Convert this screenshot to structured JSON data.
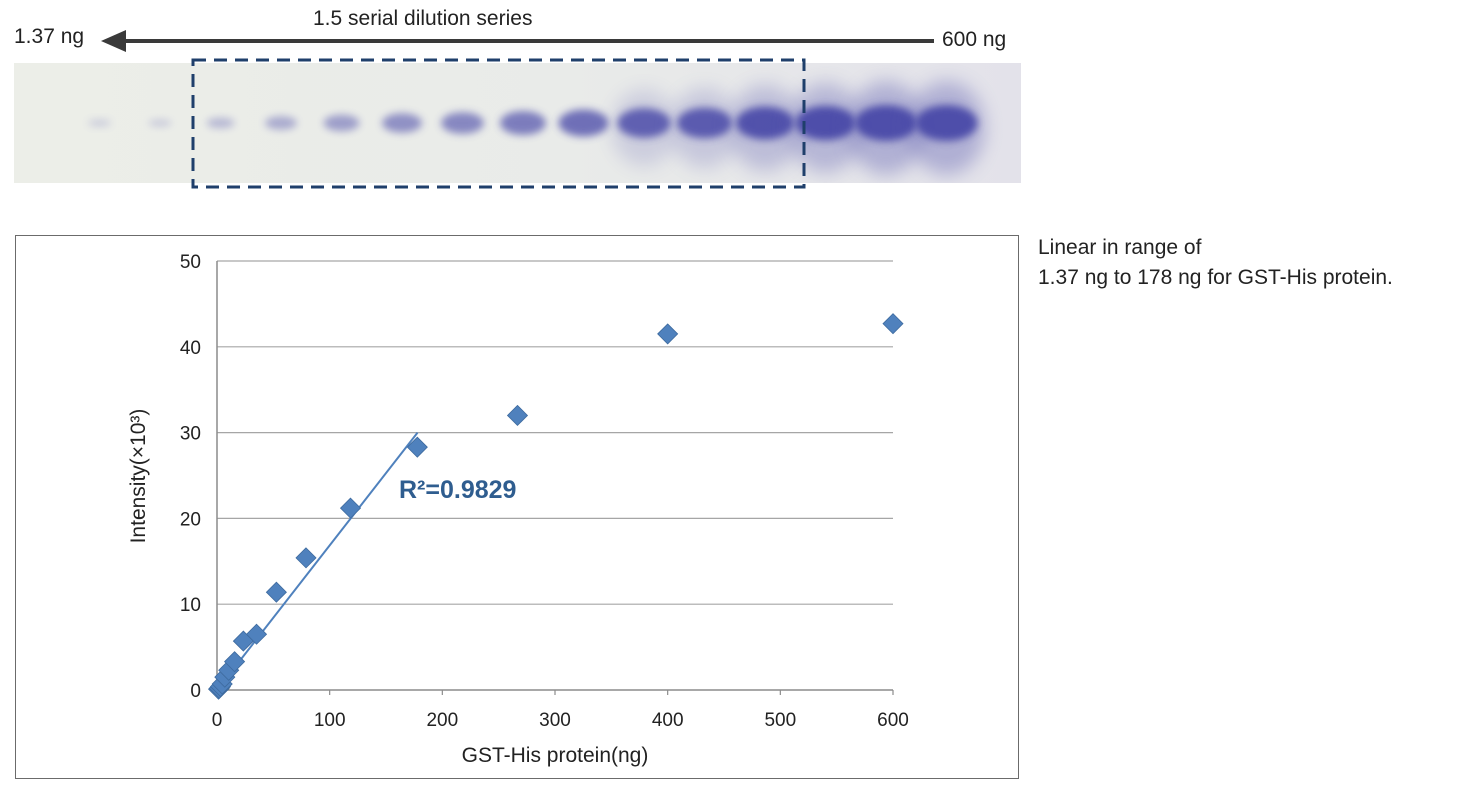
{
  "gel": {
    "left_label": "1.37 ng",
    "right_label": "600 ng",
    "series_label": "1.5 serial dilution series",
    "bands": [
      {
        "lane": 1,
        "intensity": 0.0
      },
      {
        "lane": 2,
        "intensity": 0.02
      },
      {
        "lane": 3,
        "intensity": 0.03
      },
      {
        "lane": 4,
        "intensity": 0.15
      },
      {
        "lane": 5,
        "intensity": 0.25
      },
      {
        "lane": 6,
        "intensity": 0.35
      },
      {
        "lane": 7,
        "intensity": 0.45
      },
      {
        "lane": 8,
        "intensity": 0.52
      },
      {
        "lane": 9,
        "intensity": 0.6
      },
      {
        "lane": 10,
        "intensity": 0.7
      },
      {
        "lane": 11,
        "intensity": 0.78
      },
      {
        "lane": 12,
        "intensity": 0.82
      },
      {
        "lane": 13,
        "intensity": 0.9
      },
      {
        "lane": 14,
        "intensity": 0.95
      },
      {
        "lane": 15,
        "intensity": 1.0
      },
      {
        "lane": 16,
        "intensity": 1.0
      }
    ],
    "band_color": "#4a4aa8",
    "box_color": "#1f3f6b"
  },
  "note": {
    "line1": "Linear in range of",
    "line2": "1.37 ng to 178 ng for GST-His protein."
  },
  "chart_data": {
    "type": "scatter",
    "xlabel": "GST-His protein(ng)",
    "ylabel": "Intensity(×10³)",
    "xlim": [
      0,
      600
    ],
    "ylim": [
      0,
      50
    ],
    "xticks": [
      "0",
      "100",
      "200",
      "300",
      "400",
      "500",
      "600"
    ],
    "yticks": [
      "0",
      "10",
      "20",
      "30",
      "40",
      "50"
    ],
    "grid": true,
    "marker_color": "#4f81bd",
    "points": [
      {
        "x": 1.37,
        "y": 0.1
      },
      {
        "x": 2.06,
        "y": 0.2
      },
      {
        "x": 3.09,
        "y": 0.4
      },
      {
        "x": 4.63,
        "y": 0.7
      },
      {
        "x": 6.94,
        "y": 1.5
      },
      {
        "x": 10.4,
        "y": 2.3
      },
      {
        "x": 15.6,
        "y": 3.3
      },
      {
        "x": 23.4,
        "y": 5.7
      },
      {
        "x": 35.1,
        "y": 6.5
      },
      {
        "x": 52.7,
        "y": 11.4
      },
      {
        "x": 79.0,
        "y": 15.4
      },
      {
        "x": 118.5,
        "y": 21.2
      },
      {
        "x": 177.8,
        "y": 28.3
      },
      {
        "x": 266.7,
        "y": 32.0
      },
      {
        "x": 400.0,
        "y": 41.5
      },
      {
        "x": 600.0,
        "y": 42.7
      }
    ],
    "trendline": {
      "x": [
        0,
        178
      ],
      "y": [
        0.0,
        30.0
      ]
    },
    "annotation": "R²=0.9829"
  }
}
